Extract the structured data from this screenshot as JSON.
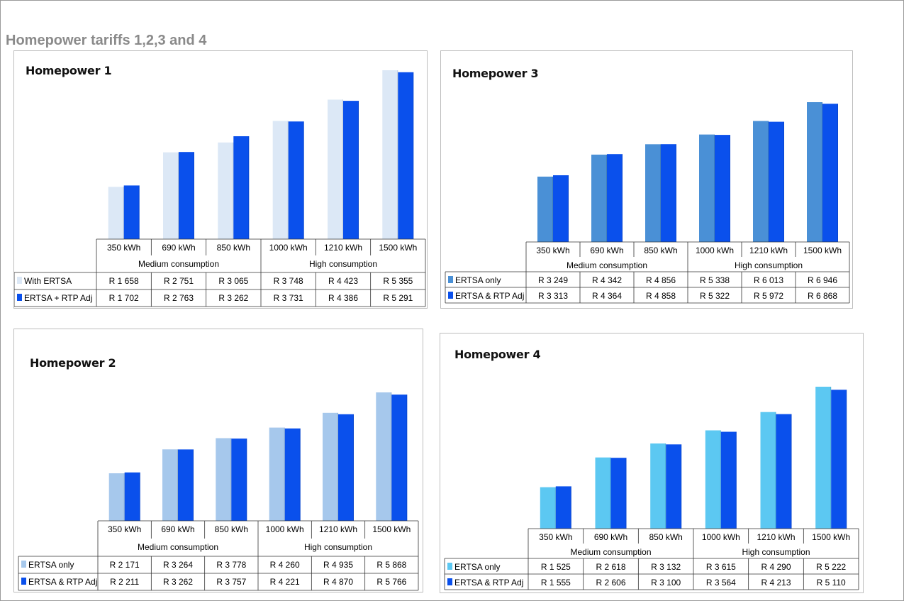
{
  "page": {
    "title": "Homepower tariffs 1,2,3 and 4"
  },
  "chart_data": [
    {
      "type": "bar",
      "title": "Homepower 1",
      "categories": [
        "350 kWh",
        "690 kWh",
        "850 kWh",
        "1000 kWh",
        "1210 kWh",
        "1500 kWh"
      ],
      "groups": [
        {
          "label": "Medium consumption",
          "span": [
            0,
            2
          ]
        },
        {
          "label": "High consumption",
          "span": [
            3,
            5
          ]
        }
      ],
      "series": [
        {
          "name": "With ERTSA",
          "color": "#dce8f6",
          "values": [
            1658,
            2751,
            3065,
            3748,
            4423,
            5355
          ],
          "labels": [
            "R 1 658",
            "R 2 751",
            "R 3 065",
            "R 3 748",
            "R 4 423",
            "R 5 355"
          ]
        },
        {
          "name": "ERTSA + RTP Adj",
          "color": "#0a50ec",
          "values": [
            1702,
            2763,
            3262,
            3731,
            4386,
            5291
          ],
          "labels": [
            "R 1 702",
            "R 2 763",
            "R 3 262",
            "R 3 731",
            "R 4 386",
            "R 5 291"
          ]
        }
      ],
      "legend": "data-table",
      "grid": false
    },
    {
      "type": "bar",
      "title": "Homepower 3",
      "categories": [
        "350 kWh",
        "690 kWh",
        "850 kWh",
        "1000 kWh",
        "1210 kWh",
        "1500 kWh"
      ],
      "groups": [
        {
          "label": "Medium consumption",
          "span": [
            0,
            2
          ]
        },
        {
          "label": "High consumption",
          "span": [
            3,
            5
          ]
        }
      ],
      "series": [
        {
          "name": "ERTSA only",
          "color": "#4a90d6",
          "values": [
            3249,
            4342,
            4856,
            5338,
            6013,
            6946
          ],
          "labels": [
            "R 3 249",
            "R 4 342",
            "R 4 856",
            "R 5 338",
            "R 6 013",
            "R 6 946"
          ]
        },
        {
          "name": "ERTSA & RTP Adj",
          "color": "#0a50ec",
          "values": [
            3313,
            4364,
            4858,
            5322,
            5972,
            6868
          ],
          "labels": [
            "R 3 313",
            "R 4 364",
            "R 4 858",
            "R 5 322",
            "R 5 972",
            "R 6 868"
          ]
        }
      ],
      "legend": "data-table",
      "grid": false
    },
    {
      "type": "bar",
      "title": "Homepower 2",
      "categories": [
        "350 kWh",
        "690 kWh",
        "850 kWh",
        "1000 kWh",
        "1210 kWh",
        "1500 kWh"
      ],
      "groups": [
        {
          "label": "Medium consumption",
          "span": [
            0,
            2
          ]
        },
        {
          "label": "High consumption",
          "span": [
            3,
            5
          ]
        }
      ],
      "series": [
        {
          "name": "ERTSA only",
          "color": "#a6c8ec",
          "values": [
            2171,
            3264,
            3778,
            4260,
            4935,
            5868
          ],
          "labels": [
            "R 2 171",
            "R 3 264",
            "R 3 778",
            "R 4 260",
            "R 4 935",
            "R 5 868"
          ]
        },
        {
          "name": "ERTSA & RTP Adj",
          "color": "#0a50ec",
          "values": [
            2211,
            3262,
            3757,
            4221,
            4870,
            5766
          ],
          "labels": [
            "R 2 211",
            "R 3 262",
            "R 3 757",
            "R 4 221",
            "R 4 870",
            "R 5 766"
          ]
        }
      ],
      "legend": "data-table",
      "grid": false
    },
    {
      "type": "bar",
      "title": "Homepower 4",
      "categories": [
        "350 kWh",
        "690 kWh",
        "850 kWh",
        "1000 kWh",
        "1210 kWh",
        "1500 kWh"
      ],
      "groups": [
        {
          "label": "Medium consumption",
          "span": [
            0,
            2
          ]
        },
        {
          "label": "High consumption",
          "span": [
            3,
            5
          ]
        }
      ],
      "series": [
        {
          "name": "ERTSA only",
          "color": "#5cc8f2",
          "values": [
            1525,
            2618,
            3132,
            3615,
            4290,
            5222
          ],
          "labels": [
            "R 1 525",
            "R 2 618",
            "R 3 132",
            "R 3 615",
            "R 4 290",
            "R 5 222"
          ]
        },
        {
          "name": "ERTSA & RTP Adj",
          "color": "#0a50ec",
          "values": [
            1555,
            2606,
            3100,
            3564,
            4213,
            5110
          ],
          "labels": [
            "R 1 555",
            "R 2 606",
            "R 3 100",
            "R 3 564",
            "R 4 213",
            "R 5 110"
          ]
        }
      ],
      "legend": "data-table",
      "grid": false
    }
  ]
}
